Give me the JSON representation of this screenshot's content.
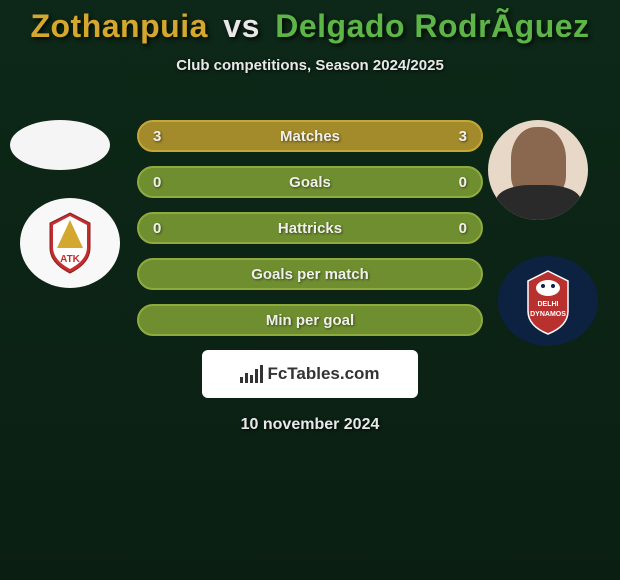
{
  "title": {
    "player1": "Zothanpuia",
    "vs": "vs",
    "player2": "Delgado RodrÃ­guez",
    "player1_color": "#d4a82e",
    "vs_color": "#e8e8e8",
    "player2_color": "#5db548"
  },
  "subtitle": "Club competitions, Season 2024/2025",
  "stats": [
    {
      "left_val": "3",
      "label": "Matches",
      "right_val": "3",
      "bg_color": "#a38a2b",
      "border_color": "#c4a835"
    },
    {
      "left_val": "0",
      "label": "Goals",
      "right_val": "0",
      "bg_color": "#6f8e30",
      "border_color": "#8fab3d"
    },
    {
      "left_val": "0",
      "label": "Hattricks",
      "right_val": "0",
      "bg_color": "#6f8e30",
      "border_color": "#8fab3d"
    },
    {
      "left_val": "",
      "label": "Goals per match",
      "right_val": "",
      "bg_color": "#6f8e30",
      "border_color": "#8fab3d"
    },
    {
      "left_val": "",
      "label": "Min per goal",
      "right_val": "",
      "bg_color": "#6f8e30",
      "border_color": "#8fab3d"
    }
  ],
  "logo_text": "FcTables.com",
  "date": "10 november 2024",
  "clubs": {
    "left": {
      "name": "ATK",
      "primary_color": "#c42e2e",
      "secondary_color": "#ffffff",
      "accent_color": "#d4a82e"
    },
    "right": {
      "name": "Delhi Dynamos",
      "primary_color": "#0d2240",
      "secondary_color": "#b8312f",
      "text_color": "#ffffff"
    }
  }
}
